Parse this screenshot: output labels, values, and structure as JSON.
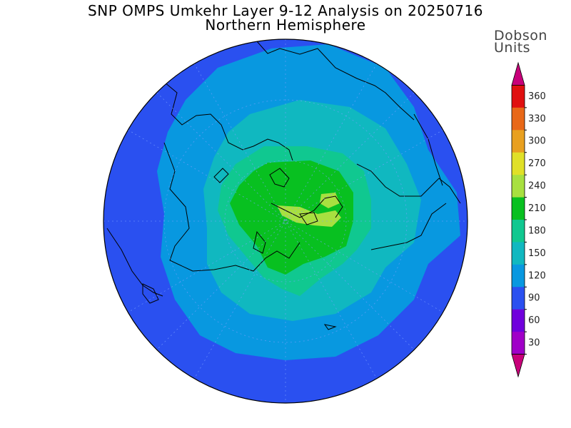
{
  "title": "SNP OMPS Umkehr Layer 9-12 Analysis on 20250716",
  "subtitle": "Northern Hemisphere",
  "colorbar": {
    "units_line1": "Dobson",
    "units_line2": "Units",
    "ticks": [
      "360",
      "330",
      "300",
      "270",
      "240",
      "210",
      "180",
      "150",
      "120",
      "90",
      "60",
      "30"
    ],
    "colors": [
      "#c8007a",
      "#a000c8",
      "#7000dc",
      "#2a50f0",
      "#0898e0",
      "#10b8c0",
      "#10c890",
      "#08c020",
      "#a8e040",
      "#e0e028",
      "#e8a020",
      "#e86818",
      "#e01010",
      "#c8007a"
    ]
  },
  "map": {
    "hemisphere": "north",
    "projection": "polar-stereographic",
    "background_color": "#2a50f0",
    "contour_levels": [
      {
        "min": 90,
        "color": "#0898e0"
      },
      {
        "min": 120,
        "color": "#10b8c0"
      },
      {
        "min": 150,
        "color": "#10c890"
      },
      {
        "min": 180,
        "color": "#08c020"
      },
      {
        "min": 210,
        "color": "#a8e040"
      }
    ]
  }
}
